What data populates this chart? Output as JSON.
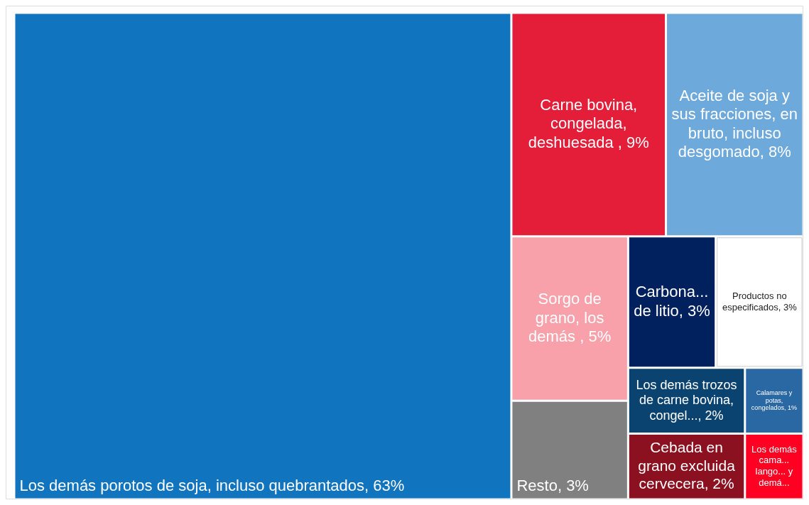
{
  "chart_data": {
    "type": "other",
    "categories": [
      "Los demás porotos de soja, incluso quebrantados",
      "Carne bovina, congelada, deshuesada ",
      "Aceite de soja y sus fracciones, en bruto, incluso desgomado",
      "Sorgo de grano, los demás ",
      "Resto",
      "Carbona... de litio",
      "Productos no especificados",
      "Los demás trozos de carne bovina, congel...",
      "Cebada en grano excluida cervecera",
      "Calamares y potas, congelados",
      "Los demás cama... lango... y demá..."
    ],
    "values": [
      63,
      9,
      8,
      5,
      3,
      3,
      3,
      2,
      2,
      1,
      null
    ],
    "value_labels": [
      ", 63%",
      ", 9%",
      ", 8%",
      ", 5%",
      ", 3%",
      ", 3%",
      ", 3%",
      ", 2%",
      ", 2%",
      ", 1%",
      null
    ],
    "colors": [
      "#1174bf",
      "#e41e38",
      "#6ea9dc",
      "#f9a1ab",
      "#808080",
      "#00215d",
      "#ffffff",
      "#0b4370",
      "#8b1020",
      "#2a68a3",
      "#ff0022"
    ]
  }
}
